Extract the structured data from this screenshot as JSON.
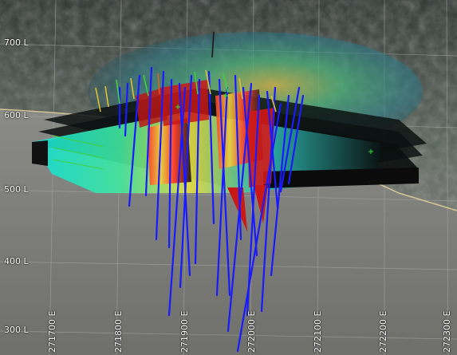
{
  "scene": {
    "elevation_labels": [
      "700 L",
      "600 L",
      "500 L",
      "400 L",
      "300 L"
    ],
    "easting_labels": [
      "271700 E",
      "271800 E",
      "271900 E",
      "272000 E",
      "272100 E",
      "272200 E",
      "272300 E"
    ],
    "colors": {
      "background_ground": "#7a7a74",
      "terrain_dark": "#3a3e38",
      "topo_line": "#d9c79a",
      "drillhole": "#1a1aff",
      "grade_high": "#c81818",
      "grade_mid": "#d8c020",
      "grade_low": "#20c8d0"
    }
  }
}
